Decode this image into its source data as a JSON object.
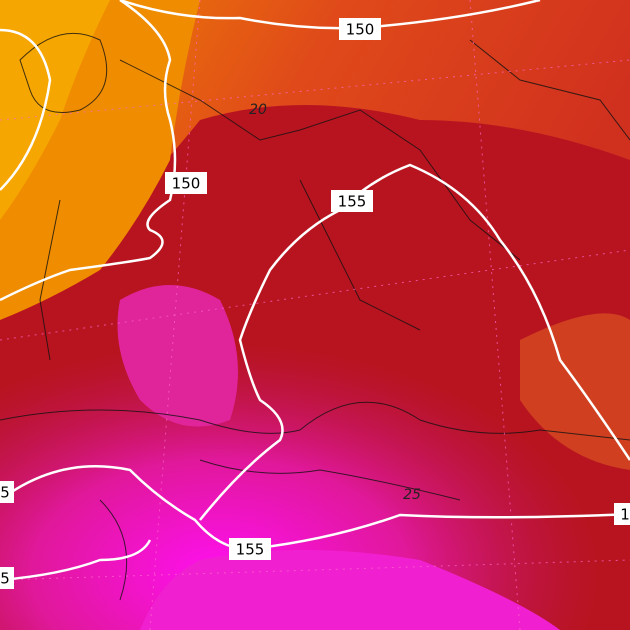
{
  "map": {
    "contour_labels": [
      "150",
      "150",
      "155",
      "155",
      "20",
      "25",
      "5",
      "5",
      "1"
    ]
  }
}
